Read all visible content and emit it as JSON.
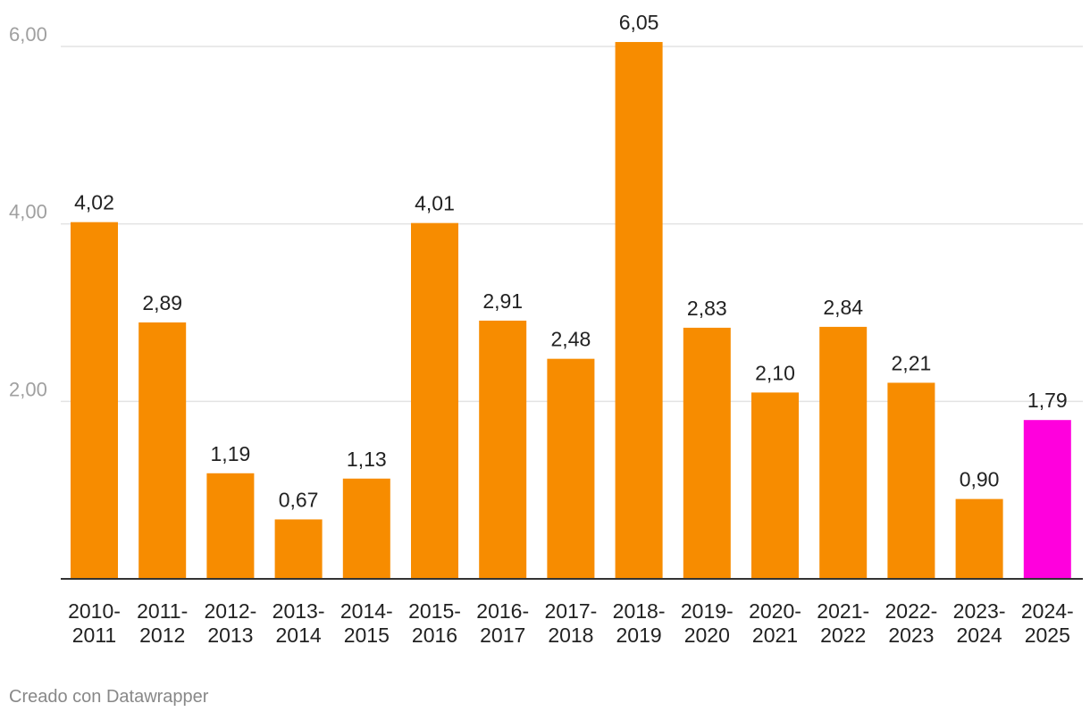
{
  "chart_data": {
    "type": "bar",
    "categories": [
      "2010-2011",
      "2011-2012",
      "2012-2013",
      "2013-2014",
      "2014-2015",
      "2015-2016",
      "2016-2017",
      "2017-2018",
      "2018-2019",
      "2019-2020",
      "2020-2021",
      "2021-2022",
      "2022-2023",
      "2023-2024",
      "2024-2025"
    ],
    "category_lines": [
      [
        "2010-",
        "2011"
      ],
      [
        "2011-",
        "2012"
      ],
      [
        "2012-",
        "2013"
      ],
      [
        "2013-",
        "2014"
      ],
      [
        "2014-",
        "2015"
      ],
      [
        "2015-",
        "2016"
      ],
      [
        "2016-",
        "2017"
      ],
      [
        "2017-",
        "2018"
      ],
      [
        "2018-",
        "2019"
      ],
      [
        "2019-",
        "2020"
      ],
      [
        "2020-",
        "2021"
      ],
      [
        "2021-",
        "2022"
      ],
      [
        "2022-",
        "2023"
      ],
      [
        "2023-",
        "2024"
      ],
      [
        "2024-",
        "2025"
      ]
    ],
    "values": [
      4.02,
      2.89,
      1.19,
      0.67,
      1.13,
      4.01,
      2.91,
      2.48,
      6.05,
      2.83,
      2.1,
      2.84,
      2.21,
      0.9,
      1.79
    ],
    "value_labels": [
      "4,02",
      "2,89",
      "1,19",
      "0,67",
      "1,13",
      "4,01",
      "2,91",
      "2,48",
      "6,05",
      "2,83",
      "2,10",
      "2,84",
      "2,21",
      "0,90",
      "1,79"
    ],
    "bar_colors": [
      "#f78c00",
      "#f78c00",
      "#f78c00",
      "#f78c00",
      "#f78c00",
      "#f78c00",
      "#f78c00",
      "#f78c00",
      "#f78c00",
      "#f78c00",
      "#f78c00",
      "#f78c00",
      "#f78c00",
      "#f78c00",
      "#ff00dd"
    ],
    "yticks": [
      2,
      4,
      6
    ],
    "ytick_labels": [
      "2,00",
      "4,00",
      "6,00"
    ],
    "ylim": [
      0,
      6
    ],
    "grid": true,
    "title": "",
    "xlabel": "",
    "ylabel": ""
  },
  "footer": {
    "credit": "Creado con Datawrapper"
  },
  "colors": {
    "accent": "#f78c00",
    "highlight": "#ff00dd",
    "grid": "#e3e3e3",
    "axis": "#333333"
  }
}
